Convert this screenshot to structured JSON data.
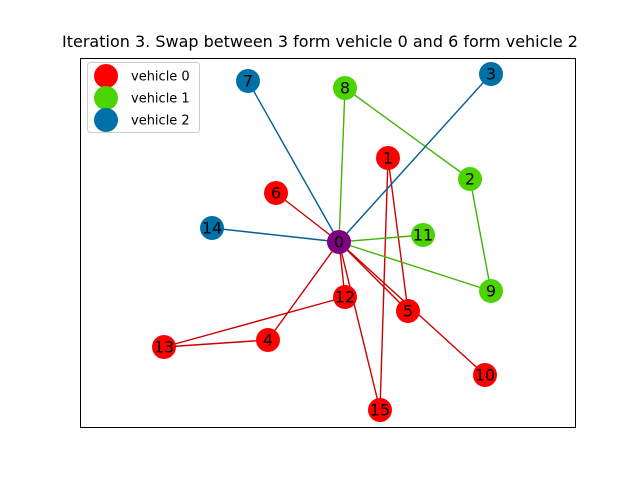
{
  "title": "Iteration 3. Swap between 3 form vehicle 0 and 6 form vehicle 2",
  "colors": {
    "vehicle0": "#ff0000",
    "vehicle1": "#4cd400",
    "vehicle2": "#0070a8",
    "depot": "#800080",
    "edge0": "#cc0000",
    "edge1": "#44b30a",
    "edge2": "#005f8f"
  },
  "legend": [
    {
      "label": "vehicle 0",
      "color_key": "vehicle0"
    },
    {
      "label": "vehicle 1",
      "color_key": "vehicle1"
    },
    {
      "label": "vehicle 2",
      "color_key": "vehicle2"
    }
  ],
  "nodes": [
    {
      "id": "0",
      "group": "depot"
    },
    {
      "id": "1",
      "group": "vehicle0"
    },
    {
      "id": "2",
      "group": "vehicle1"
    },
    {
      "id": "3",
      "group": "vehicle2"
    },
    {
      "id": "4",
      "group": "vehicle0"
    },
    {
      "id": "5",
      "group": "vehicle0"
    },
    {
      "id": "6",
      "group": "vehicle0"
    },
    {
      "id": "7",
      "group": "vehicle2"
    },
    {
      "id": "8",
      "group": "vehicle1"
    },
    {
      "id": "9",
      "group": "vehicle1"
    },
    {
      "id": "10",
      "group": "vehicle0"
    },
    {
      "id": "11",
      "group": "vehicle1"
    },
    {
      "id": "12",
      "group": "vehicle0"
    },
    {
      "id": "13",
      "group": "vehicle0"
    },
    {
      "id": "14",
      "group": "vehicle2"
    },
    {
      "id": "15",
      "group": "vehicle0"
    }
  ],
  "edges": [
    {
      "from": "0",
      "to": "6",
      "vehicle": "edge0"
    },
    {
      "from": "0",
      "to": "4",
      "vehicle": "edge0"
    },
    {
      "from": "0",
      "to": "12",
      "vehicle": "edge0"
    },
    {
      "from": "0",
      "to": "15",
      "vehicle": "edge0"
    },
    {
      "from": "0",
      "to": "5",
      "vehicle": "edge0"
    },
    {
      "from": "0",
      "to": "10",
      "vehicle": "edge0"
    },
    {
      "from": "1",
      "to": "5",
      "vehicle": "edge0"
    },
    {
      "from": "1",
      "to": "15",
      "vehicle": "edge0"
    },
    {
      "from": "12",
      "to": "13",
      "vehicle": "edge0"
    },
    {
      "from": "13",
      "to": "4",
      "vehicle": "edge0"
    },
    {
      "from": "0",
      "to": "8",
      "vehicle": "edge1"
    },
    {
      "from": "8",
      "to": "2",
      "vehicle": "edge1"
    },
    {
      "from": "2",
      "to": "9",
      "vehicle": "edge1"
    },
    {
      "from": "0",
      "to": "9",
      "vehicle": "edge1"
    },
    {
      "from": "0",
      "to": "11",
      "vehicle": "edge1"
    },
    {
      "from": "0",
      "to": "7",
      "vehicle": "edge2"
    },
    {
      "from": "0",
      "to": "3",
      "vehicle": "edge2"
    },
    {
      "from": "0",
      "to": "14",
      "vehicle": "edge2"
    }
  ]
}
